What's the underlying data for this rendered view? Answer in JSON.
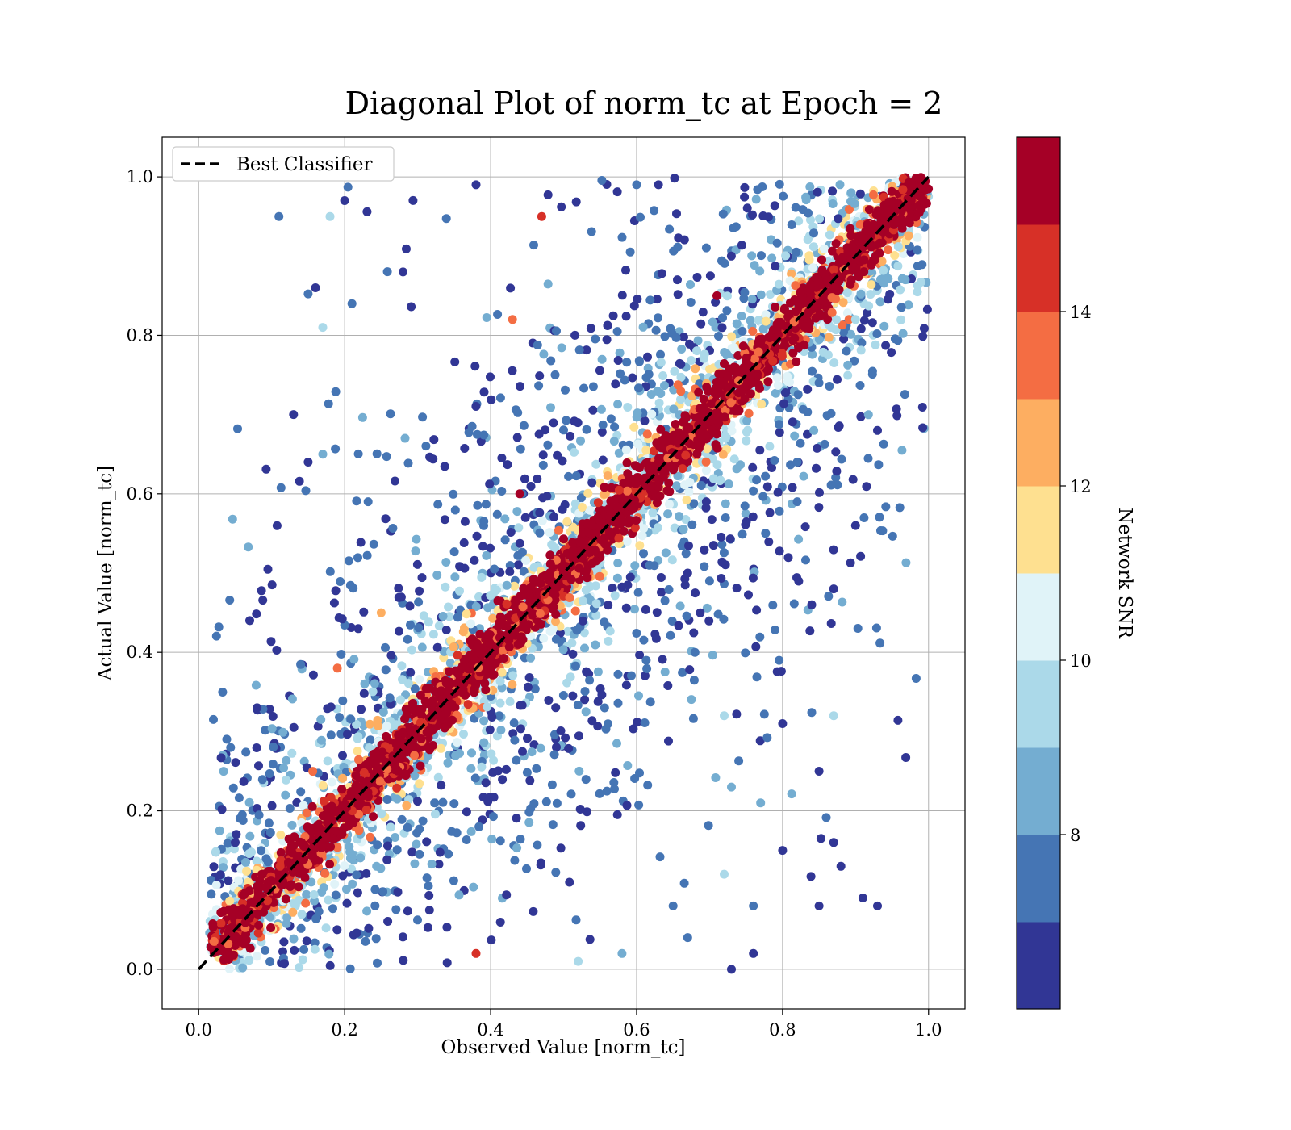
{
  "chart_data": {
    "type": "scatter",
    "title": "Diagonal Plot of norm_tc at Epoch = 2",
    "xlabel": "Observed Value [norm_tc]",
    "ylabel": "Actual Value [norm_tc]",
    "xlim": [
      -0.05,
      1.05
    ],
    "ylim": [
      -0.05,
      1.05
    ],
    "xticks": [
      "0.0",
      "0.2",
      "0.4",
      "0.6",
      "0.8",
      "1.0"
    ],
    "yticks": [
      "0.0",
      "0.2",
      "0.4",
      "0.6",
      "0.8",
      "1.0"
    ],
    "grid": true,
    "legend": {
      "position": "top-left",
      "entries": [
        "Best Classifier"
      ]
    },
    "reference_line": {
      "name": "Best Classifier",
      "style": "dashed",
      "color": "#000000",
      "x": [
        0,
        1
      ],
      "y": [
        0,
        1
      ]
    },
    "colorbar": {
      "label": "Network SNR",
      "range": [
        6,
        16
      ],
      "ticks": [
        "8",
        "10",
        "12",
        "14"
      ],
      "colors": [
        "#313695",
        "#4575b4",
        "#74add1",
        "#abd9e9",
        "#e0f3f8",
        "#fee090",
        "#fdae61",
        "#f46d43",
        "#d73027",
        "#a50026"
      ]
    },
    "points": [
      {
        "x": 0.11,
        "y": 0.95,
        "snr": 7
      },
      {
        "x": 0.18,
        "y": 0.95,
        "snr": 9.5
      },
      {
        "x": 0.2,
        "y": 0.97,
        "snr": 6.5
      },
      {
        "x": 0.38,
        "y": 0.99,
        "snr": 6.5
      },
      {
        "x": 0.47,
        "y": 0.95,
        "snr": 14.5
      },
      {
        "x": 0.6,
        "y": 0.99,
        "snr": 7
      },
      {
        "x": 0.63,
        "y": 0.99,
        "snr": 6.5
      },
      {
        "x": 0.16,
        "y": 0.86,
        "snr": 6.5
      },
      {
        "x": 0.21,
        "y": 0.84,
        "snr": 7
      },
      {
        "x": 0.28,
        "y": 0.88,
        "snr": 6.5
      },
      {
        "x": 0.43,
        "y": 0.82,
        "snr": 13
      },
      {
        "x": 0.71,
        "y": 0.85,
        "snr": 15.5
      },
      {
        "x": 0.17,
        "y": 0.81,
        "snr": 9.5
      },
      {
        "x": 0.13,
        "y": 0.7,
        "snr": 6.5
      },
      {
        "x": 0.15,
        "y": 0.64,
        "snr": 6.5
      },
      {
        "x": 0.17,
        "y": 0.65,
        "snr": 8
      },
      {
        "x": 0.44,
        "y": 0.6,
        "snr": 15.5
      },
      {
        "x": 0.07,
        "y": 0.44,
        "snr": 6.5
      },
      {
        "x": 0.25,
        "y": 0.45,
        "snr": 12.5
      },
      {
        "x": 0.19,
        "y": 0.38,
        "snr": 13
      },
      {
        "x": 0.08,
        "y": 0.33,
        "snr": 6.5
      },
      {
        "x": 0.05,
        "y": 0.16,
        "snr": 6.5
      },
      {
        "x": 0.93,
        "y": 0.68,
        "snr": 6.5
      },
      {
        "x": 0.9,
        "y": 0.56,
        "snr": 6.5
      },
      {
        "x": 0.87,
        "y": 0.48,
        "snr": 6.5
      },
      {
        "x": 0.84,
        "y": 0.46,
        "snr": 6.5
      },
      {
        "x": 0.87,
        "y": 0.32,
        "snr": 9.5
      },
      {
        "x": 0.8,
        "y": 0.31,
        "snr": 6.5
      },
      {
        "x": 0.85,
        "y": 0.25,
        "snr": 6.5
      },
      {
        "x": 0.77,
        "y": 0.21,
        "snr": 8
      },
      {
        "x": 0.73,
        "y": 0.23,
        "snr": 8
      },
      {
        "x": 0.87,
        "y": 0.16,
        "snr": 6.5
      },
      {
        "x": 0.88,
        "y": 0.13,
        "snr": 6.5
      },
      {
        "x": 0.8,
        "y": 0.15,
        "snr": 6.5
      },
      {
        "x": 0.72,
        "y": 0.12,
        "snr": 9.5
      },
      {
        "x": 0.91,
        "y": 0.09,
        "snr": 6.5
      },
      {
        "x": 0.93,
        "y": 0.08,
        "snr": 6.5
      },
      {
        "x": 0.85,
        "y": 0.08,
        "snr": 6.5
      },
      {
        "x": 0.76,
        "y": 0.08,
        "snr": 7
      },
      {
        "x": 0.65,
        "y": 0.08,
        "snr": 7
      },
      {
        "x": 0.67,
        "y": 0.04,
        "snr": 7.5
      },
      {
        "x": 0.73,
        "y": 0.0,
        "snr": 6.5
      },
      {
        "x": 0.76,
        "y": 0.02,
        "snr": 6.5
      },
      {
        "x": 0.58,
        "y": 0.02,
        "snr": 8
      },
      {
        "x": 0.52,
        "y": 0.01,
        "snr": 9.5
      },
      {
        "x": 0.38,
        "y": 0.02,
        "snr": 14.5
      },
      {
        "x": 0.9,
        "y": 0.82,
        "snr": 9.5
      },
      {
        "x": 0.85,
        "y": 0.74,
        "snr": 7
      },
      {
        "x": 0.82,
        "y": 0.64,
        "snr": 7.5
      },
      {
        "x": 0.82,
        "y": 0.59,
        "snr": 7
      },
      {
        "x": 0.72,
        "y": 0.32,
        "snr": 9.5
      },
      {
        "x": 0.68,
        "y": 0.4,
        "snr": 7
      },
      {
        "x": 0.67,
        "y": 0.5,
        "snr": 6.5
      },
      {
        "x": 0.7,
        "y": 0.49,
        "snr": 7
      }
    ]
  }
}
